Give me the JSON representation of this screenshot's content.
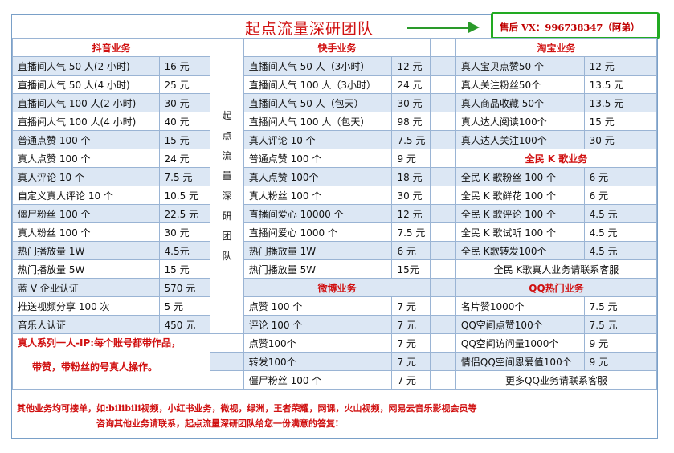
{
  "title": "起点流量深研团队",
  "contact": "售后 VX：996738347（阿弟）",
  "colors": {
    "accent_red": "#d01010",
    "contact_border": "#22aa22",
    "row_shade": "#dce7f4",
    "grid": "#9ab4d4"
  },
  "vertical_label": [
    "起",
    "点",
    "流",
    "量",
    "深",
    "研",
    "团",
    "队"
  ],
  "sections": {
    "douyin": "抖音业务",
    "kuaishou": "快手业务",
    "taobao": "淘宝业务",
    "quanmin": "全民 K 歌业务",
    "weibo": "微博业务",
    "qq": "QQ热门业务"
  },
  "douyin_rows": [
    {
      "item": "直播间人气 50 人(2 小时)",
      "price": "16 元"
    },
    {
      "item": "直播间人气 50 人(4 小时)",
      "price": "25 元"
    },
    {
      "item": "直播间人气 100 人(2 小时)",
      "price": "30 元"
    },
    {
      "item": "直播间人气 100 人(4 小时)",
      "price": "40 元"
    },
    {
      "item": "普通点赞 100 个",
      "price": "15 元"
    },
    {
      "item": "真人点赞 100 个",
      "price": "24 元"
    },
    {
      "item": "真人评论 10 个",
      "price": "7.5 元"
    },
    {
      "item": "自定义真人评论 10 个",
      "price": "10.5 元"
    },
    {
      "item": "僵尸粉丝 100 个",
      "price": "22.5 元"
    },
    {
      "item": "真人粉丝 100 个",
      "price": "30 元"
    },
    {
      "item": "热门播放量 1W",
      "price": "4.5元"
    },
    {
      "item": "热门播放量 5W",
      "price": "15 元"
    },
    {
      "item": "蓝 V 企业认证",
      "price": "570 元"
    },
    {
      "item": "推送视频分享 100 次",
      "price": "5 元"
    },
    {
      "item": "音乐人认证",
      "price": "450 元"
    }
  ],
  "kuaishou_rows": [
    {
      "item": "直播间人气 50 人（3小时）",
      "price": "12 元"
    },
    {
      "item": "直播间人气 100 人（3小时）",
      "price": "24 元"
    },
    {
      "item": "直播间人气 50 人（包天）",
      "price": "30 元"
    },
    {
      "item": "直播间人气 100 人（包天）",
      "price": "98 元"
    },
    {
      "item": "真人评论 10 个",
      "price": "7.5 元"
    },
    {
      "item": "普通点赞 100 个",
      "price": "9 元"
    },
    {
      "item": "真人点赞 100个",
      "price": "18 元"
    },
    {
      "item": "真人粉丝 100 个",
      "price": "30 元"
    },
    {
      "item": "直播间爱心 10000 个",
      "price": "12 元"
    },
    {
      "item": "直播间爱心 1000 个",
      "price": "7.5 元"
    },
    {
      "item": "热门播放量 1W",
      "price": "6 元"
    },
    {
      "item": "热门播放量 5W",
      "price": "15元"
    }
  ],
  "taobao_rows": [
    {
      "item": "真人宝贝点赞50 个",
      "price": "12 元"
    },
    {
      "item": "真人关注粉丝50个",
      "price": "13.5 元"
    },
    {
      "item": "真人商品收藏 50个",
      "price": "13.5 元"
    },
    {
      "item": "真人达人阅读100个",
      "price": "15 元"
    },
    {
      "item": "真人达人关注100个",
      "price": "30 元"
    }
  ],
  "quanmin_rows": [
    {
      "item": "全民 K 歌粉丝 100 个",
      "price": "6 元"
    },
    {
      "item": "全民 K 歌鲜花 100 个",
      "price": "6 元"
    },
    {
      "item": "全民 K 歌评论 100 个",
      "price": "4.5 元"
    },
    {
      "item": "全民 K 歌试听 100 个",
      "price": "4.5 元"
    },
    {
      "item": "全民 K歌转发100个",
      "price": "4.5 元"
    }
  ],
  "quanmin_note": "全民 K歌真人业务请联系客服",
  "weibo_rows": [
    {
      "item": "点赞 100 个",
      "price": "7 元"
    },
    {
      "item": "评论 100 个",
      "price": "7 元"
    },
    {
      "item": "点赞100个",
      "price": "7 元"
    },
    {
      "item": "转发100个",
      "price": "7 元"
    },
    {
      "item": "僵尸粉丝 100 个",
      "price": "7 元"
    }
  ],
  "qq_rows": [
    {
      "item": "名片赞1000个",
      "price": "7.5 元"
    },
    {
      "item": "QQ空间点赞100个",
      "price": "7.5 元"
    },
    {
      "item": "QQ空间访问量1000个",
      "price": "9 元"
    },
    {
      "item": "情侣QQ空间恩爱值100个",
      "price": "9 元"
    }
  ],
  "qq_note": "更多QQ业务请联系客服",
  "red_note_1": "真人系列一人-IP:每个账号都带作品，",
  "red_note_2": "带赞，带粉丝的号真人操作。",
  "footer_1": "其他业务均可接单，如:bilibili视频，小红书业务，微视，绿洲，王者荣耀，网课，火山视频，网易云音乐影视会员等",
  "footer_2": "咨询其他业务请联系，起点流量深研团队给您一份满意的答复!"
}
